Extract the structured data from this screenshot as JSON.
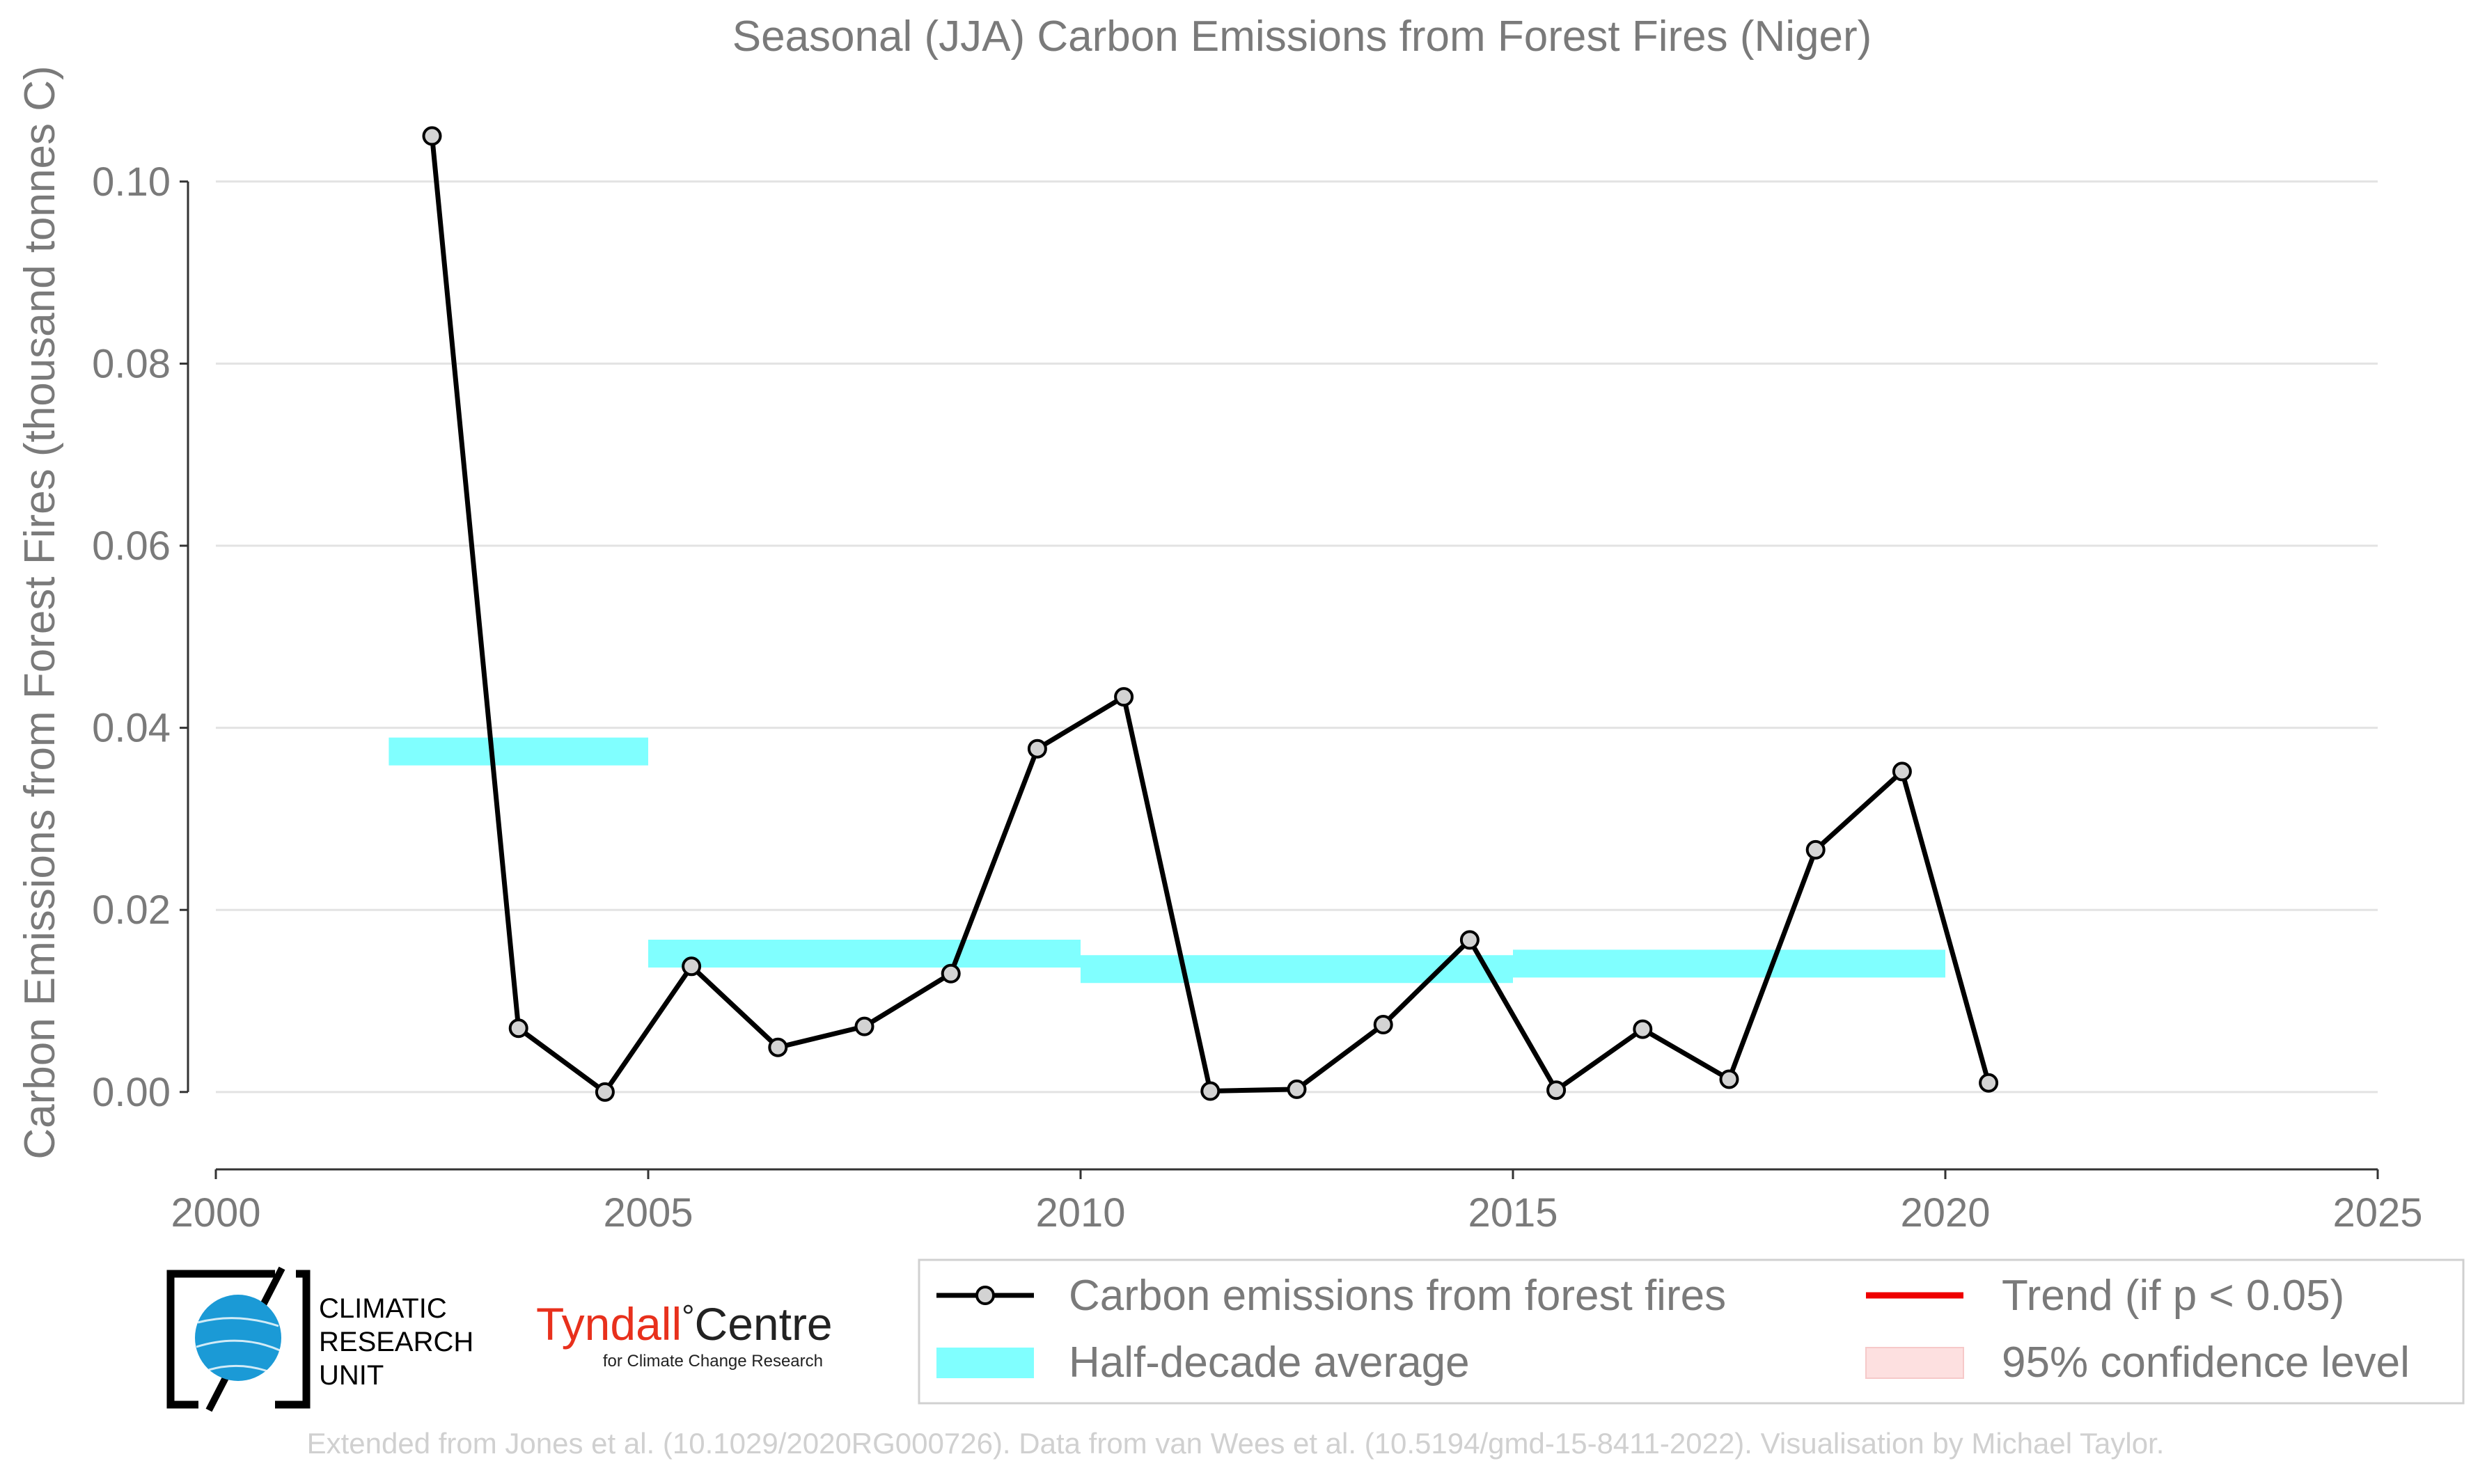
{
  "chart_data": {
    "type": "line",
    "title": "Seasonal (JJA) Carbon Emissions from Forest Fires (Niger)",
    "ylabel": "Carbon Emissions from Forest Fires (thousand tonnes C)",
    "xlabel": "",
    "xlim": [
      2000,
      2025
    ],
    "ylim": [
      -0.0085,
      0.11
    ],
    "x_ticks": [
      2000,
      2005,
      2010,
      2015,
      2020,
      2025
    ],
    "x_tick_labels": [
      "2000",
      "2005",
      "2010",
      "2015",
      "2020",
      "2025"
    ],
    "y_ticks": [
      0.0,
      0.02,
      0.04,
      0.06,
      0.08,
      0.1
    ],
    "y_tick_labels": [
      "0.00",
      "0.02",
      "0.04",
      "0.06",
      "0.08",
      "0.10"
    ],
    "grid": "horizontal",
    "legend_position": "bottom-right",
    "series": [
      {
        "name": "Carbon emissions from forest fires",
        "color": "#000000",
        "marker_fill": "#d3d3d3",
        "x": [
          2002.5,
          2003.5,
          2004.5,
          2005.5,
          2006.5,
          2007.5,
          2008.5,
          2009.5,
          2010.5,
          2011.5,
          2012.5,
          2013.5,
          2014.5,
          2015.5,
          2016.5,
          2017.5,
          2018.5,
          2019.5,
          2020.5
        ],
        "y": [
          0.105,
          0.007,
          0.0,
          0.0138,
          0.0049,
          0.0072,
          0.013,
          0.0377,
          0.0434,
          0.0001,
          0.0003,
          0.0074,
          0.0167,
          0.0002,
          0.0069,
          0.0014,
          0.0266,
          0.0352,
          0.001
        ]
      }
    ],
    "half_decade_average": {
      "name": "Half-decade average",
      "color": "#80ffff",
      "segments": [
        {
          "x_start": 2002,
          "x_end": 2005,
          "y": 0.0374
        },
        {
          "x_start": 2005,
          "x_end": 2010,
          "y": 0.0152
        },
        {
          "x_start": 2010,
          "x_end": 2015,
          "y": 0.0135
        },
        {
          "x_start": 2015,
          "x_end": 2020,
          "y": 0.0141
        }
      ]
    },
    "legend": [
      {
        "label": "Carbon emissions from forest fires",
        "kind": "line-marker",
        "color": "#000000"
      },
      {
        "label": "Trend (if p < 0.05)",
        "kind": "line",
        "color": "#ee0000"
      },
      {
        "label": "Half-decade average",
        "kind": "band",
        "color": "#80ffff"
      },
      {
        "label": "95% confidence level",
        "kind": "band",
        "color": "#fde0e0"
      }
    ]
  },
  "logos": {
    "cru": {
      "lines": [
        "CLIMATIC",
        "RESEARCH",
        "UNIT"
      ],
      "color": "#1b9ad6"
    },
    "tyndall": {
      "name_part1": "Tyndall",
      "degree": "°",
      "name_part2": "Centre",
      "tagline": "for Climate Change Research",
      "color": "#e8301c"
    }
  },
  "footer": "Extended from Jones et al. (10.1029/2020RG000726). Data from van Wees et al. (10.5194/gmd-15-8411-2022). Visualisation by Michael Taylor."
}
